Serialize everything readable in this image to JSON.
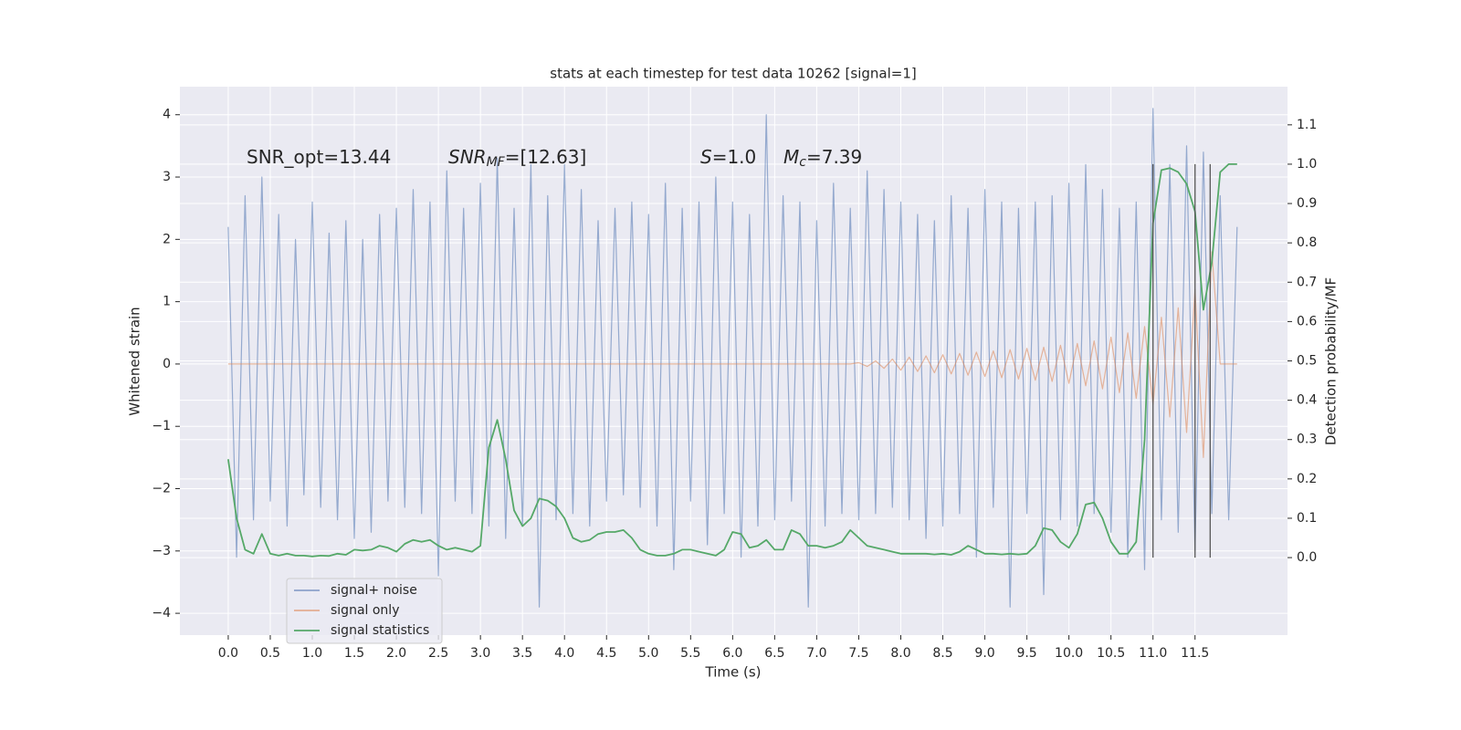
{
  "chart_data": {
    "type": "line",
    "title": "stats at each timestep for test data 10262 [signal=1]",
    "xlabel": "Time (s)",
    "ylabel": "Whitened strain",
    "y2label": "Detection probability/MF",
    "annotations": [
      {
        "main": "SNR_opt=13.44"
      },
      {
        "main": "SNR",
        "sub": "MF",
        "after": "=[12.63]"
      },
      {
        "main": "S",
        "after": "=1.0"
      },
      {
        "main": "M",
        "sub": "c",
        "after": "=7.39"
      }
    ],
    "x": [
      0,
      0.1,
      0.2,
      0.3,
      0.4,
      0.5,
      0.6,
      0.7,
      0.8,
      0.9,
      1,
      1.1,
      1.2,
      1.3,
      1.4,
      1.5,
      1.6,
      1.7,
      1.8,
      1.9,
      2,
      2.1,
      2.2,
      2.3,
      2.4,
      2.5,
      2.6,
      2.7,
      2.8,
      2.9,
      3,
      3.1,
      3.2,
      3.3,
      3.4,
      3.5,
      3.6,
      3.7,
      3.8,
      3.9,
      4,
      4.1,
      4.2,
      4.3,
      4.4,
      4.5,
      4.6,
      4.7,
      4.8,
      4.9,
      5,
      5.1,
      5.2,
      5.3,
      5.4,
      5.5,
      5.6,
      5.7,
      5.8,
      5.9,
      6,
      6.1,
      6.2,
      6.3,
      6.4,
      6.5,
      6.6,
      6.7,
      6.8,
      6.9,
      7,
      7.1,
      7.2,
      7.3,
      7.4,
      7.5,
      7.6,
      7.7,
      7.8,
      7.9,
      8,
      8.1,
      8.2,
      8.3,
      8.4,
      8.5,
      8.6,
      8.7,
      8.8,
      8.9,
      9,
      9.1,
      9.2,
      9.3,
      9.4,
      9.5,
      9.6,
      9.7,
      9.8,
      9.9,
      10,
      10.1,
      10.2,
      10.3,
      10.4,
      10.5,
      10.6,
      10.7,
      10.8,
      10.9,
      11,
      11.1,
      11.2,
      11.3,
      11.4,
      11.5,
      11.6,
      11.7,
      11.8,
      11.9,
      12
    ],
    "series": [
      {
        "name": "signal+ noise",
        "color": "#4c72b0",
        "axis": "y",
        "values": [
          2.2,
          -3.1,
          2.7,
          -2.5,
          3.0,
          -2.2,
          2.4,
          -2.6,
          2.0,
          -2.1,
          2.6,
          -2.3,
          2.1,
          -2.5,
          2.3,
          -2.8,
          2.0,
          -2.7,
          2.4,
          -2.2,
          2.5,
          -2.3,
          2.8,
          -2.4,
          2.6,
          -3.4,
          3.1,
          -2.2,
          2.5,
          -2.4,
          2.9,
          -2.6,
          3.3,
          -2.8,
          2.5,
          -2.6,
          3.2,
          -3.9,
          2.7,
          -2.5,
          3.2,
          -2.4,
          2.8,
          -2.6,
          2.3,
          -2.2,
          2.5,
          -2.1,
          2.6,
          -2.3,
          2.4,
          -2.6,
          2.9,
          -3.3,
          2.5,
          -2.2,
          2.6,
          -2.9,
          3.0,
          -2.4,
          2.6,
          -3.1,
          2.4,
          -2.6,
          4.0,
          -2.5,
          2.7,
          -2.2,
          2.6,
          -3.9,
          2.3,
          -2.6,
          2.9,
          -2.4,
          2.5,
          -2.5,
          3.1,
          -2.4,
          2.8,
          -2.3,
          2.6,
          -2.5,
          2.4,
          -2.8,
          2.3,
          -2.6,
          2.7,
          -2.4,
          2.5,
          -3.1,
          2.8,
          -2.3,
          2.6,
          -3.9,
          2.5,
          -2.4,
          2.6,
          -3.7,
          2.7,
          -2.5,
          2.9,
          -2.6,
          3.2,
          -2.4,
          2.8,
          -2.7,
          2.5,
          -3.1,
          2.6,
          -3.3,
          4.1,
          -2.5,
          3.2,
          -2.7,
          3.5,
          -3.0,
          3.4,
          -2.4,
          2.7,
          -2.5,
          2.2
        ]
      },
      {
        "name": "signal only",
        "color": "#dd8452",
        "axis": "y",
        "values": [
          0,
          0,
          0,
          0,
          0,
          0,
          0,
          0,
          0,
          0,
          0,
          0,
          0,
          0,
          0,
          0,
          0,
          0,
          0,
          0,
          0,
          0,
          0,
          0,
          0,
          0,
          0,
          0,
          0,
          0,
          0,
          0,
          0,
          0,
          0,
          0,
          0,
          0,
          0,
          0,
          0,
          0,
          0,
          0,
          0,
          0,
          0,
          0,
          0,
          0,
          0,
          0,
          0,
          0,
          0,
          0,
          0,
          0,
          0,
          0,
          0,
          0,
          0,
          0,
          0,
          0,
          0,
          0,
          0,
          0,
          0,
          0,
          0,
          0,
          0,
          0.02,
          -0.04,
          0.05,
          -0.07,
          0.08,
          -0.1,
          0.11,
          -0.12,
          0.13,
          -0.14,
          0.15,
          -0.16,
          0.17,
          -0.18,
          0.19,
          -0.2,
          0.21,
          -0.22,
          0.23,
          -0.24,
          0.25,
          -0.26,
          0.27,
          -0.28,
          0.3,
          -0.31,
          0.33,
          -0.35,
          0.37,
          -0.4,
          0.43,
          -0.46,
          0.5,
          -0.55,
          0.6,
          -0.65,
          0.75,
          -0.85,
          0.9,
          -1.1,
          1.2,
          -1.5,
          1.8,
          0,
          0,
          0
        ]
      },
      {
        "name": "signal statistics",
        "color": "#55a868",
        "axis": "y2",
        "values": [
          0.25,
          0.1,
          0.02,
          0.01,
          0.06,
          0.01,
          0.005,
          0.01,
          0.005,
          0.005,
          0.003,
          0.005,
          0.004,
          0.01,
          0.007,
          0.02,
          0.018,
          0.02,
          0.03,
          0.025,
          0.015,
          0.035,
          0.045,
          0.04,
          0.045,
          0.03,
          0.02,
          0.025,
          0.02,
          0.015,
          0.03,
          0.28,
          0.35,
          0.25,
          0.12,
          0.08,
          0.1,
          0.15,
          0.145,
          0.13,
          0.1,
          0.05,
          0.04,
          0.045,
          0.06,
          0.065,
          0.065,
          0.07,
          0.05,
          0.02,
          0.01,
          0.005,
          0.005,
          0.01,
          0.02,
          0.02,
          0.015,
          0.01,
          0.005,
          0.02,
          0.065,
          0.06,
          0.025,
          0.03,
          0.045,
          0.02,
          0.02,
          0.07,
          0.06,
          0.03,
          0.03,
          0.025,
          0.03,
          0.04,
          0.07,
          0.05,
          0.03,
          0.025,
          0.02,
          0.015,
          0.01,
          0.01,
          0.01,
          0.01,
          0.008,
          0.01,
          0.007,
          0.015,
          0.03,
          0.02,
          0.01,
          0.01,
          0.008,
          0.01,
          0.008,
          0.01,
          0.03,
          0.075,
          0.07,
          0.04,
          0.025,
          0.06,
          0.135,
          0.14,
          0.1,
          0.04,
          0.01,
          0.01,
          0.04,
          0.3,
          0.85,
          0.985,
          0.99,
          0.98,
          0.95,
          0.88,
          0.63,
          0.75,
          0.98,
          1.0,
          1.0
        ]
      }
    ],
    "vlines": {
      "x": [
        11.0,
        11.5,
        11.68
      ],
      "ymin": 0,
      "ymax": 1,
      "color": "#555555"
    },
    "xlim": [
      -0.575,
      12.6
    ],
    "ylim": [
      -4.35,
      4.45
    ],
    "y2lim": [
      -0.197,
      1.197
    ],
    "xticks": [
      {
        "value": 0,
        "label": "0.0"
      },
      {
        "value": 0.5,
        "label": "0.5"
      },
      {
        "value": 1,
        "label": "1.0"
      },
      {
        "value": 1.5,
        "label": "1.5"
      },
      {
        "value": 2,
        "label": "2.0"
      },
      {
        "value": 2.5,
        "label": "2.5"
      },
      {
        "value": 3,
        "label": "3.0"
      },
      {
        "value": 3.5,
        "label": "3.5"
      },
      {
        "value": 4,
        "label": "4.0"
      },
      {
        "value": 4.5,
        "label": "4.5"
      },
      {
        "value": 5,
        "label": "5.0"
      },
      {
        "value": 5.5,
        "label": "5.5"
      },
      {
        "value": 6,
        "label": "6.0"
      },
      {
        "value": 6.5,
        "label": "6.5"
      },
      {
        "value": 7,
        "label": "7.0"
      },
      {
        "value": 7.5,
        "label": "7.5"
      },
      {
        "value": 8,
        "label": "8.0"
      },
      {
        "value": 8.5,
        "label": "8.5"
      },
      {
        "value": 9,
        "label": "9.0"
      },
      {
        "value": 9.5,
        "label": "9.5"
      },
      {
        "value": 10,
        "label": "10.0"
      },
      {
        "value": 10.5,
        "label": "10.5"
      },
      {
        "value": 11,
        "label": "11.0"
      },
      {
        "value": 11.5,
        "label": "11.5"
      }
    ],
    "yticks": [
      {
        "value": -4,
        "label": "−4"
      },
      {
        "value": -3,
        "label": "−3"
      },
      {
        "value": -2,
        "label": "−2"
      },
      {
        "value": -1,
        "label": "−1"
      },
      0,
      1,
      2,
      3,
      4
    ],
    "y2ticks": [
      {
        "value": 0,
        "label": "0.0"
      },
      {
        "value": 0.1,
        "label": "0.1"
      },
      {
        "value": 0.2,
        "label": "0.2"
      },
      {
        "value": 0.3,
        "label": "0.3"
      },
      {
        "value": 0.4,
        "label": "0.4"
      },
      {
        "value": 0.5,
        "label": "0.5"
      },
      {
        "value": 0.6,
        "label": "0.6"
      },
      {
        "value": 0.7,
        "label": "0.7"
      },
      {
        "value": 0.8,
        "label": "0.8"
      },
      {
        "value": 0.9,
        "label": "0.9"
      },
      {
        "value": 1,
        "label": "1.0"
      },
      {
        "value": 1.1,
        "label": "1.1"
      }
    ],
    "grid": true,
    "background": "#eaeaf2",
    "legend": "lower left"
  }
}
